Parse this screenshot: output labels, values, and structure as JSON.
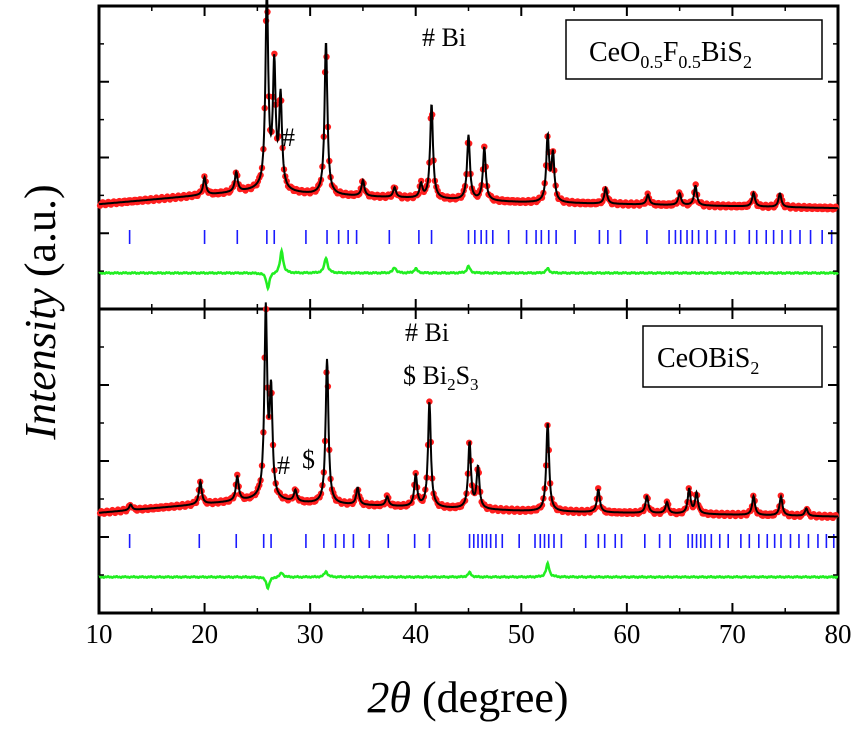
{
  "chart_data": {
    "type": "line",
    "xlabel": "2θ (degree)",
    "xlabel_italic": "2θ",
    "xlabel_rest": "(degree)",
    "ylabel": "Intensity (a.u.)",
    "ylabel_italic": "Intensity",
    "ylabel_rest": "(a.u.)",
    "xlim": [
      10,
      80
    ],
    "x_ticks": [
      10,
      20,
      30,
      40,
      50,
      60,
      70,
      80
    ],
    "grid": false,
    "colors": {
      "observed": "#ff1e1e",
      "calculated": "#000000",
      "difference": "#22ee22",
      "bragg": "#1a1aff"
    },
    "panels": [
      {
        "legend_box": {
          "base": "CeO",
          "sub1": "0.5",
          "mid": "F",
          "sub2": "0.5",
          "rest": "BiS",
          "sub3": "2"
        },
        "annotations": {
          "bi_key": "# Bi",
          "peak_marks": [
            "#"
          ]
        },
        "background": [
          [
            10,
            0.06
          ],
          [
            25,
            0.13
          ],
          [
            30,
            0.11
          ],
          [
            50,
            0.07
          ],
          [
            80,
            0.04
          ]
        ],
        "peaks": [
          [
            20.0,
            0.09
          ],
          [
            23.0,
            0.1
          ],
          [
            25.9,
            1.0
          ],
          [
            26.6,
            0.62
          ],
          [
            27.2,
            0.47
          ],
          [
            31.5,
            0.78
          ],
          [
            35.0,
            0.08
          ],
          [
            38.0,
            0.05
          ],
          [
            40.5,
            0.07
          ],
          [
            41.5,
            0.48
          ],
          [
            45.0,
            0.33
          ],
          [
            46.5,
            0.27
          ],
          [
            52.5,
            0.33
          ],
          [
            53.0,
            0.24
          ],
          [
            58.0,
            0.08
          ],
          [
            62.0,
            0.05
          ],
          [
            65.0,
            0.06
          ],
          [
            66.5,
            0.1
          ],
          [
            72.0,
            0.07
          ],
          [
            74.5,
            0.07
          ]
        ],
        "difference": [
          [
            26.0,
            -0.14
          ],
          [
            27.3,
            0.2
          ],
          [
            31.5,
            0.14
          ],
          [
            38.0,
            0.05
          ],
          [
            40.0,
            0.04
          ],
          [
            45.0,
            0.06
          ],
          [
            52.5,
            0.04
          ]
        ],
        "bragg_ticks": [
          12.9,
          20.0,
          23.1,
          25.9,
          26.6,
          29.6,
          31.6,
          32.7,
          33.6,
          34.4,
          37.5,
          40.3,
          41.5,
          45.0,
          45.6,
          46.2,
          46.7,
          47.3,
          48.8,
          50.5,
          51.4,
          51.9,
          52.6,
          53.3,
          55.1,
          57.4,
          58.2,
          59.4,
          61.9,
          64.0,
          64.6,
          65.1,
          65.7,
          66.2,
          66.8,
          67.6,
          68.4,
          69.4,
          70.2,
          71.6,
          72.3,
          73.2,
          73.9,
          74.7,
          75.5,
          76.4,
          77.4,
          78.5,
          79.4
        ]
      },
      {
        "legend_box": {
          "base": "CeOBiS",
          "sub1": "2"
        },
        "annotations": {
          "bi_key": "# Bi",
          "bi2s3_key": {
            "prefix": "$ Bi",
            "sub1": "2",
            "mid": "S",
            "sub2": "3"
          },
          "peak_marks": [
            "#",
            "$"
          ]
        },
        "background": [
          [
            10,
            0.07
          ],
          [
            25,
            0.14
          ],
          [
            30,
            0.12
          ],
          [
            50,
            0.08
          ],
          [
            80,
            0.05
          ]
        ],
        "peaks": [
          [
            13.0,
            0.03
          ],
          [
            19.6,
            0.12
          ],
          [
            23.1,
            0.13
          ],
          [
            25.8,
            1.0
          ],
          [
            26.3,
            0.55
          ],
          [
            28.6,
            0.06
          ],
          [
            31.6,
            0.77
          ],
          [
            34.5,
            0.09
          ],
          [
            37.3,
            0.05
          ],
          [
            40.0,
            0.17
          ],
          [
            41.3,
            0.56
          ],
          [
            45.1,
            0.35
          ],
          [
            45.9,
            0.22
          ],
          [
            52.5,
            0.47
          ],
          [
            57.3,
            0.12
          ],
          [
            61.9,
            0.09
          ],
          [
            63.8,
            0.06
          ],
          [
            65.9,
            0.13
          ],
          [
            66.6,
            0.11
          ],
          [
            72.0,
            0.1
          ],
          [
            74.6,
            0.1
          ],
          [
            77.0,
            0.04
          ]
        ],
        "difference": [
          [
            26.0,
            -0.1
          ],
          [
            27.3,
            0.04
          ],
          [
            31.5,
            0.05
          ],
          [
            45.1,
            0.04
          ],
          [
            52.5,
            0.12
          ]
        ],
        "bragg_ticks": [
          12.9,
          19.5,
          23.0,
          25.6,
          26.3,
          29.6,
          31.3,
          32.4,
          33.2,
          34.1,
          35.6,
          37.4,
          39.9,
          41.3,
          45.1,
          45.5,
          45.9,
          46.3,
          46.7,
          47.1,
          47.6,
          48.2,
          49.8,
          51.3,
          51.8,
          52.2,
          52.6,
          53.1,
          53.8,
          56.1,
          57.3,
          57.9,
          58.9,
          59.5,
          61.7,
          63.1,
          64.1,
          65.8,
          66.2,
          66.6,
          67.0,
          67.4,
          68.0,
          68.8,
          69.6,
          70.8,
          71.6,
          72.5,
          73.3,
          74.0,
          74.6,
          75.5,
          76.3,
          77.2,
          78.1,
          78.9,
          79.6
        ]
      }
    ]
  }
}
